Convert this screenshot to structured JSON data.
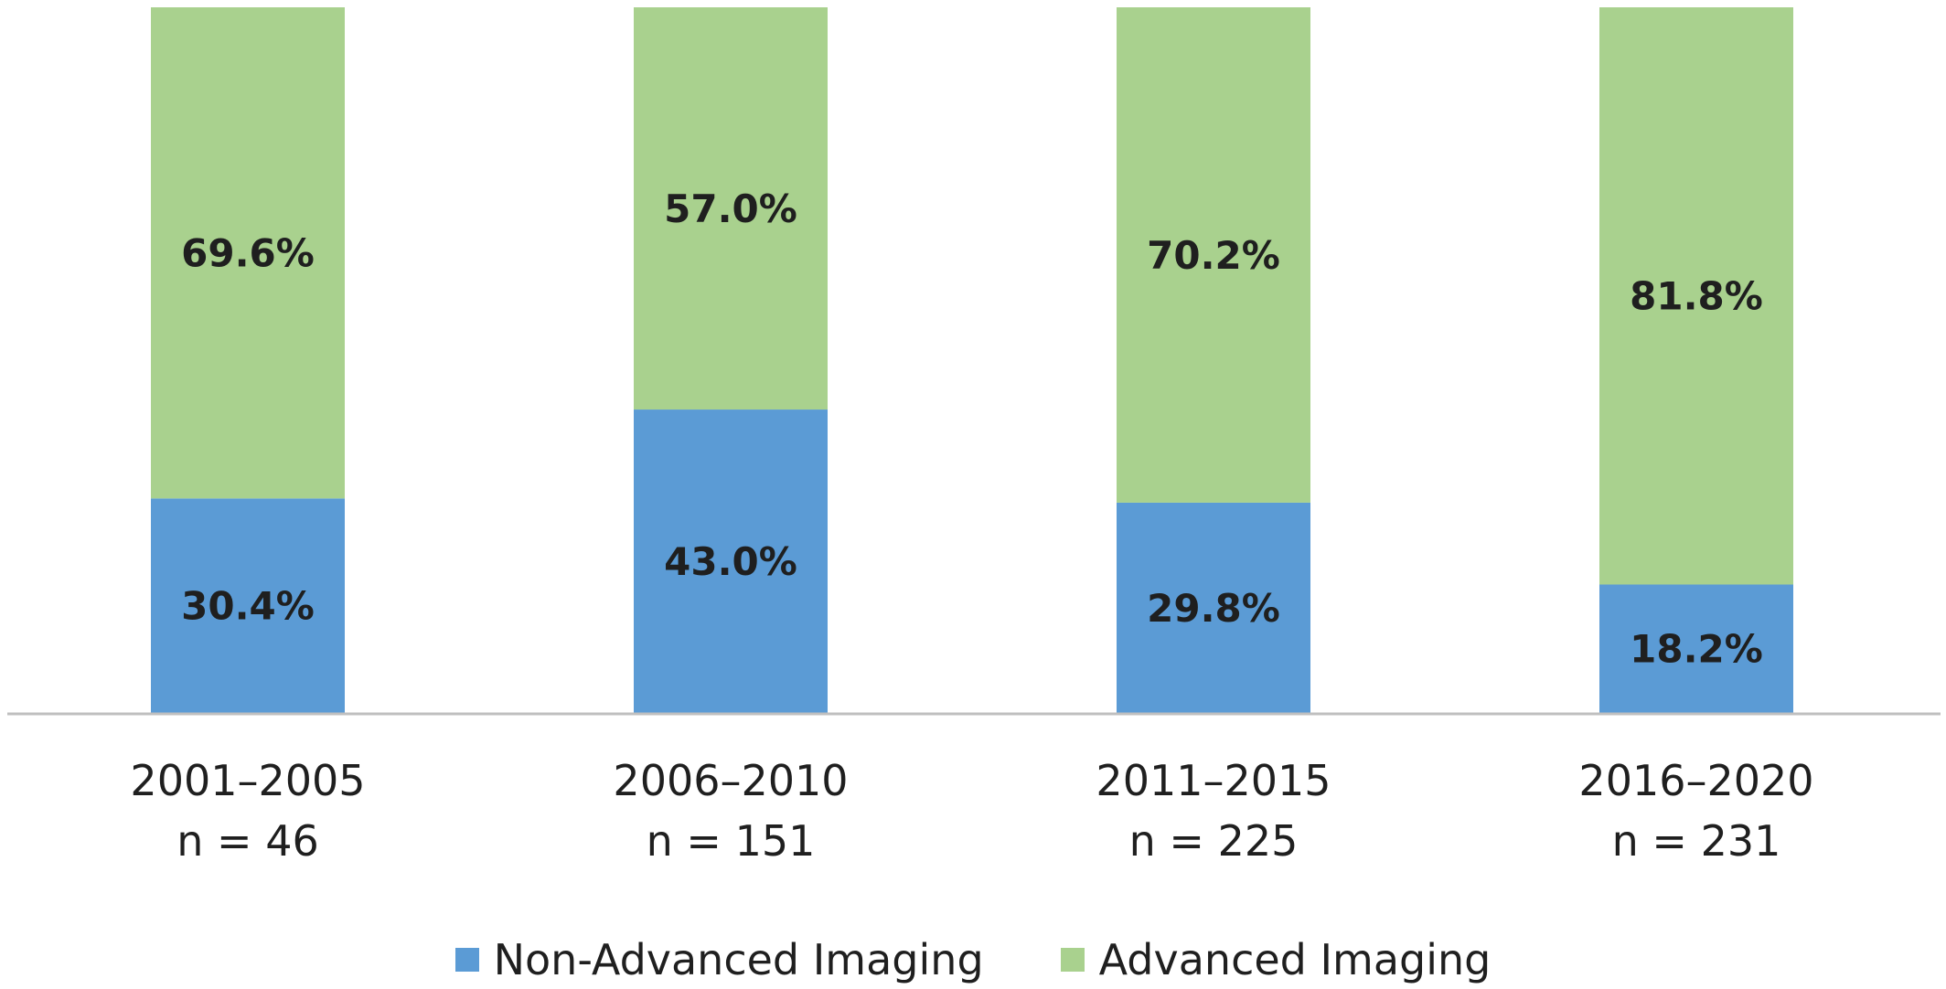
{
  "chart_data": {
    "type": "bar",
    "stacked": true,
    "categories": [
      "2001–2005",
      "2006–2010",
      "2011–2015",
      "2016–2020"
    ],
    "category_sublabels": [
      "n = 46",
      "n = 151",
      "n = 225",
      "n = 231"
    ],
    "series": [
      {
        "name": "Non-Advanced Imaging",
        "color": "#5b9bd5",
        "values": [
          30.4,
          43.0,
          29.8,
          18.2
        ],
        "labels": [
          "30.4%",
          "43.0%",
          "29.8%",
          "18.2%"
        ]
      },
      {
        "name": "Advanced Imaging",
        "color": "#a9d18e",
        "values": [
          69.6,
          57.0,
          70.2,
          81.8
        ],
        "labels": [
          "69.6%",
          "57.0%",
          "70.2%",
          "81.8%"
        ]
      }
    ],
    "ylim": [
      0,
      100
    ],
    "unit": "%",
    "grid": false,
    "legend_position": "bottom",
    "baseline_color": "#bfbfbf"
  }
}
